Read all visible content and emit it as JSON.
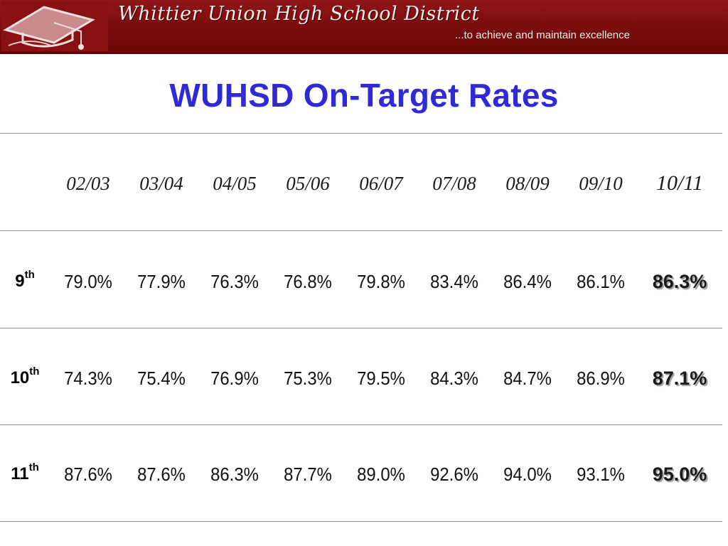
{
  "header": {
    "title": "Whittier Union High School District",
    "tagline": "...to achieve and maintain excellence",
    "logo_icon": "graduation-cap-icon",
    "colors": {
      "banner": "#7a0c0c",
      "banner_text": "#f3ecec"
    }
  },
  "page_title": "WUHSD On-Target Rates",
  "title_color": "#2f2ad6",
  "table": {
    "years": [
      "02/03",
      "03/04",
      "04/05",
      "05/06",
      "06/07",
      "07/08",
      "08/09",
      "09/10",
      "10/11"
    ],
    "rows": [
      {
        "grade": "9",
        "suffix": "th",
        "values": [
          "79.0%",
          "77.9%",
          "76.3%",
          "76.8%",
          "79.8%",
          "83.4%",
          "86.4%",
          "86.1%",
          "86.3%"
        ]
      },
      {
        "grade": "10",
        "suffix": "th",
        "values": [
          "74.3%",
          "75.4%",
          "76.9%",
          "75.3%",
          "79.5%",
          "84.3%",
          "84.7%",
          "86.9%",
          "87.1%"
        ]
      },
      {
        "grade": "11",
        "suffix": "th",
        "values": [
          "87.6%",
          "87.6%",
          "86.3%",
          "87.7%",
          "89.0%",
          "92.6%",
          "94.0%",
          "93.1%",
          "95.0%"
        ]
      }
    ]
  }
}
